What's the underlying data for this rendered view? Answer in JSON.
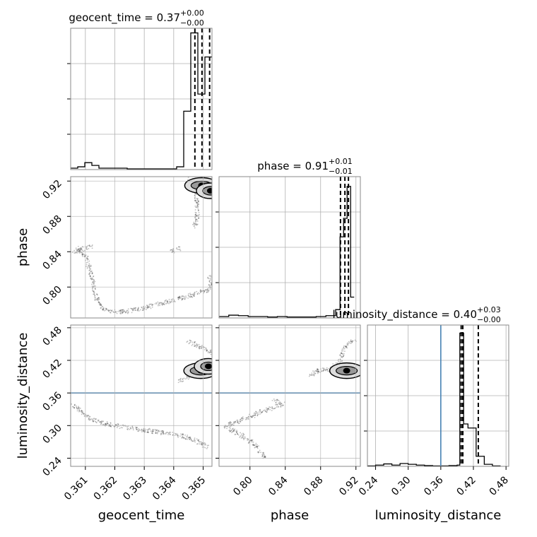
{
  "chart_data": {
    "type": "corner",
    "variables": [
      "geocent_time",
      "phase",
      "luminosity_distance"
    ],
    "axis_labels": {
      "geocent_time": "geocent_time",
      "phase": "phase",
      "luminosity_distance": "luminosity_distance"
    },
    "ranges": {
      "geocent_time": [
        0.3605,
        0.3653
      ],
      "phase": [
        0.765,
        0.925
      ],
      "luminosity_distance": [
        0.225,
        0.485
      ]
    },
    "ticks": {
      "geocent_time": {
        "values": [
          0.361,
          0.362,
          0.363,
          0.364,
          0.365
        ],
        "labels": [
          "0.361",
          "0.362",
          "0.363",
          "0.364",
          "0.365"
        ]
      },
      "phase": {
        "values": [
          0.8,
          0.84,
          0.88,
          0.92
        ],
        "labels": [
          "0.80",
          "0.84",
          "0.88",
          "0.92"
        ]
      },
      "luminosity_distance": {
        "values": [
          0.24,
          0.3,
          0.36,
          0.42,
          0.48
        ],
        "labels": [
          "0.24",
          "0.30",
          "0.36",
          "0.42",
          "0.48"
        ]
      }
    },
    "titles": {
      "geocent_time": {
        "base": "geocent_time = 0.37",
        "plus": "+0.00",
        "minus": "−0.00"
      },
      "phase": {
        "base": "phase = 0.91",
        "plus": "+0.01",
        "minus": "−0.01"
      },
      "luminosity_distance": {
        "base": "luminosity_distance = 0.40",
        "plus": "+0.03",
        "minus": "−0.00"
      }
    },
    "histograms": {
      "geocent_time": {
        "edges": [
          0.3605,
          0.36074,
          0.36098,
          0.36122,
          0.36146,
          0.3617,
          0.36194,
          0.36218,
          0.36242,
          0.36266,
          0.3629,
          0.36314,
          0.36338,
          0.36362,
          0.36386,
          0.3641,
          0.36434,
          0.36458,
          0.36482,
          0.36506,
          0.3653
        ],
        "counts": [
          0.3,
          0.6,
          1.5,
          0.9,
          0.3,
          0.3,
          0.3,
          0.3,
          0.15,
          0.15,
          0.15,
          0.15,
          0.15,
          0.15,
          0.15,
          0.6,
          12.6,
          29.5,
          16.3,
          24.3
        ],
        "ymax": 30.5,
        "quantiles": [
          0.36472,
          0.36496,
          0.36522
        ]
      },
      "phase": {
        "edges": [
          0.765,
          0.776,
          0.787,
          0.798,
          0.809,
          0.82,
          0.831,
          0.842,
          0.853,
          0.864,
          0.875,
          0.886,
          0.897,
          0.902,
          0.906,
          0.91,
          0.914,
          0.918
        ],
        "counts": [
          0.3,
          0.6,
          0.5,
          0.3,
          0.3,
          0.2,
          0.3,
          0.2,
          0.2,
          0.2,
          0.3,
          0.5,
          1.8,
          17.5,
          21.5,
          28.4,
          4.5
        ],
        "ymax": 30.5,
        "quantiles": [
          0.9025,
          0.9075,
          0.9115
        ]
      },
      "luminosity_distance": {
        "edges": [
          0.225,
          0.24,
          0.255,
          0.27,
          0.285,
          0.3,
          0.315,
          0.33,
          0.345,
          0.36,
          0.375,
          0.39,
          0.395,
          0.402,
          0.41,
          0.425,
          0.44,
          0.455,
          0.47
        ],
        "counts": [
          0.1,
          0.3,
          0.6,
          0.3,
          0.7,
          0.5,
          0.3,
          0.2,
          0.1,
          0.1,
          0.2,
          0.3,
          33.0,
          10.5,
          9.5,
          2.5,
          0.5,
          0.1
        ],
        "ymax": 35.0,
        "quantiles": [
          0.3975,
          0.4005,
          0.429
        ]
      }
    },
    "truths": {
      "luminosity_distance": 0.36
    },
    "truth_color": "#4682b4",
    "grid": true,
    "scatter": {
      "phase_vs_geocent_time": {
        "polylines": [
          [
            [
              0.3607,
              0.845
            ],
            [
              0.361,
              0.835
            ],
            [
              0.3612,
              0.815
            ],
            [
              0.3613,
              0.798
            ],
            [
              0.3614,
              0.785
            ],
            [
              0.3616,
              0.775
            ],
            [
              0.3619,
              0.772
            ],
            [
              0.3623,
              0.772
            ],
            [
              0.3628,
              0.775
            ],
            [
              0.3632,
              0.778
            ],
            [
              0.3638,
              0.783
            ],
            [
              0.3643,
              0.788
            ],
            [
              0.3648,
              0.793
            ],
            [
              0.3652,
              0.797
            ],
            [
              0.3653,
              0.803
            ],
            [
              0.3652,
              0.812
            ]
          ],
          [
            [
              0.3606,
              0.84
            ],
            [
              0.3609,
              0.843
            ],
            [
              0.3612,
              0.846
            ]
          ],
          [
            [
              0.3639,
              0.84
            ],
            [
              0.3642,
              0.844
            ]
          ],
          [
            [
              0.3645,
              0.923
            ],
            [
              0.3647,
              0.908
            ],
            [
              0.3648,
              0.895
            ],
            [
              0.3648,
              0.88
            ],
            [
              0.3647,
              0.867
            ]
          ]
        ],
        "modes": [
          [
            0.36495,
            0.915
          ],
          [
            0.36525,
            0.909
          ]
        ]
      },
      "luminosity_distance_vs_geocent_time": {
        "polylines": [
          [
            [
              0.3605,
              0.338
            ],
            [
              0.3607,
              0.333
            ],
            [
              0.3609,
              0.323
            ],
            [
              0.3612,
              0.312
            ],
            [
              0.3617,
              0.303
            ],
            [
              0.3624,
              0.297
            ],
            [
              0.3632,
              0.29
            ],
            [
              0.364,
              0.284
            ],
            [
              0.3645,
              0.278
            ],
            [
              0.3648,
              0.271
            ],
            [
              0.3652,
              0.26
            ]
          ],
          [
            [
              0.3645,
              0.455
            ],
            [
              0.3648,
              0.448
            ],
            [
              0.3651,
              0.44
            ],
            [
              0.3653,
              0.434
            ]
          ],
          [
            [
              0.3642,
              0.382
            ],
            [
              0.3646,
              0.392
            ],
            [
              0.3649,
              0.401
            ]
          ]
        ],
        "modes": [
          [
            0.36492,
            0.401
          ],
          [
            0.36518,
            0.409
          ]
        ]
      },
      "luminosity_distance_vs_phase": {
        "polylines": [
          [
            [
              0.838,
              0.34
            ],
            [
              0.826,
              0.333
            ],
            [
              0.812,
              0.325
            ],
            [
              0.8,
              0.316
            ],
            [
              0.783,
              0.306
            ],
            [
              0.772,
              0.299
            ],
            [
              0.779,
              0.292
            ],
            [
              0.788,
              0.284
            ],
            [
              0.797,
              0.275
            ],
            [
              0.806,
              0.263
            ],
            [
              0.812,
              0.252
            ],
            [
              0.818,
              0.24
            ]
          ],
          [
            [
              0.827,
              0.349
            ],
            [
              0.832,
              0.341
            ]
          ],
          [
            [
              0.875,
              0.4
            ],
            [
              0.892,
              0.404
            ],
            [
              0.902,
              0.42
            ],
            [
              0.906,
              0.44
            ],
            [
              0.912,
              0.452
            ],
            [
              0.918,
              0.457
            ]
          ],
          [
            [
              0.868,
              0.392
            ],
            [
              0.877,
              0.4
            ]
          ]
        ],
        "modes": [
          [
            0.9095,
            0.401
          ]
        ]
      }
    }
  }
}
